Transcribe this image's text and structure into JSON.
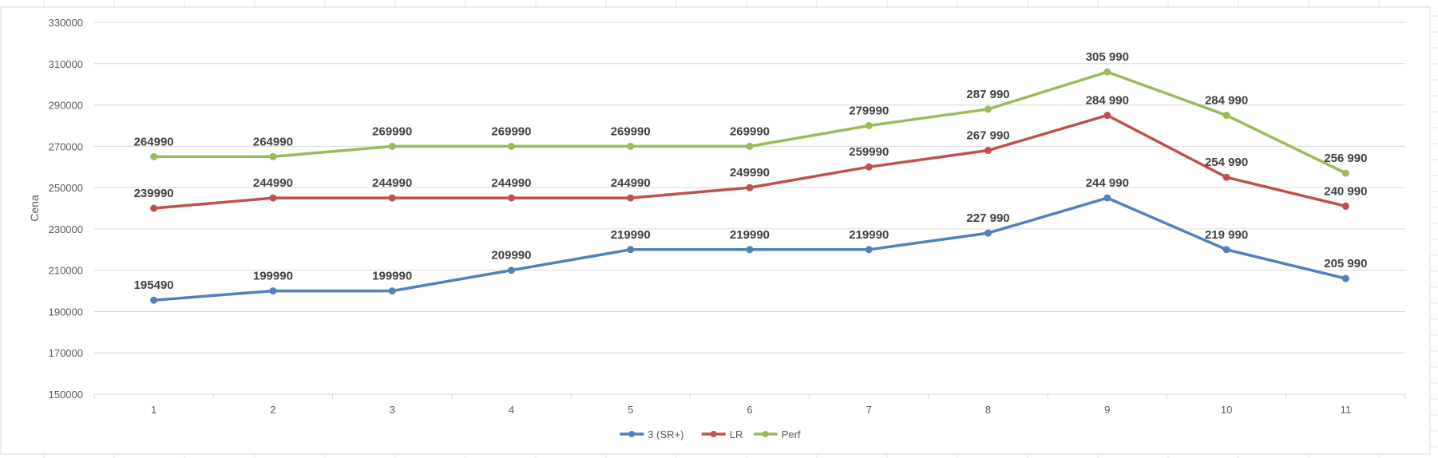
{
  "chart_data": {
    "type": "line",
    "title": "",
    "xlabel": "",
    "ylabel": "Cena",
    "ylim": [
      150000,
      330000
    ],
    "ytick_step": 20000,
    "yticks": [
      "150000",
      "170000",
      "190000",
      "210000",
      "230000",
      "250000",
      "270000",
      "290000",
      "310000",
      "330000"
    ],
    "categories": [
      "1",
      "2",
      "3",
      "4",
      "5",
      "6",
      "7",
      "8",
      "9",
      "10",
      "11"
    ],
    "grid": true,
    "legend_position": "bottom",
    "series": [
      {
        "name": "3 (SR+)",
        "color": "#4f81bd",
        "values": [
          195490,
          199990,
          199990,
          209990,
          219990,
          219990,
          219990,
          227990,
          244990,
          219990,
          205990
        ],
        "labels": [
          "195490",
          "199990",
          "199990",
          "209990",
          "219990",
          "219990",
          "219990",
          "227 990",
          "244 990",
          "219 990",
          "205 990"
        ]
      },
      {
        "name": "LR",
        "color": "#c0504d",
        "values": [
          239990,
          244990,
          244990,
          244990,
          244990,
          249990,
          259990,
          267990,
          284990,
          254990,
          240990
        ],
        "labels": [
          "239990",
          "244990",
          "244990",
          "244990",
          "244990",
          "249990",
          "259990",
          "267 990",
          "284 990",
          "254 990",
          "240 990"
        ]
      },
      {
        "name": "Perf",
        "color": "#9bbb59",
        "values": [
          264990,
          264990,
          269990,
          269990,
          269990,
          269990,
          279990,
          287990,
          305990,
          284990,
          256990
        ],
        "labels": [
          "264990",
          "264990",
          "269990",
          "269990",
          "269990",
          "269990",
          "279990",
          "287 990",
          "305 990",
          "284 990",
          "256 990"
        ]
      }
    ]
  }
}
